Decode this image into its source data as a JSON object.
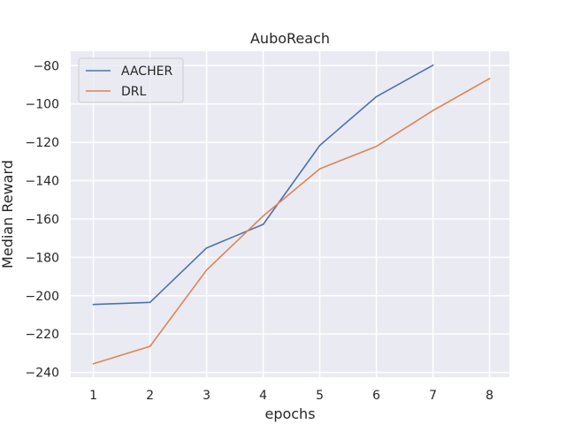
{
  "chart_data": {
    "type": "line",
    "title": "AuboReach",
    "xlabel": "epochs",
    "ylabel": "Median Reward",
    "xlim": [
      0.6,
      8.35
    ],
    "ylim": [
      -242.5,
      -72.5
    ],
    "xticks": [
      1,
      2,
      3,
      4,
      5,
      6,
      7,
      8
    ],
    "yticks": [
      -240,
      -220,
      -200,
      -180,
      -160,
      -140,
      -120,
      -100,
      -80
    ],
    "xtick_labels": [
      "1",
      "2",
      "3",
      "4",
      "5",
      "6",
      "7",
      "8"
    ],
    "ytick_labels": [
      "−240",
      "−220",
      "−200",
      "−180",
      "−160",
      "−140",
      "−120",
      "−100",
      "−80"
    ],
    "grid": true,
    "legend_position": "top-left",
    "series": [
      {
        "name": "AACHER",
        "color": "#4c72b0",
        "x": [
          1,
          2,
          3,
          4,
          5,
          6,
          7
        ],
        "y": [
          -204.6,
          -203.5,
          -175.1,
          -162.8,
          -121.6,
          -96.2,
          -79.8
        ]
      },
      {
        "name": "DRL",
        "color": "#dd8452",
        "x": [
          1,
          2,
          3,
          4,
          5,
          6,
          7,
          8
        ],
        "y": [
          -235.5,
          -226.4,
          -186.6,
          -158.4,
          -133.8,
          -122.1,
          -103.4,
          -86.8
        ]
      }
    ]
  }
}
